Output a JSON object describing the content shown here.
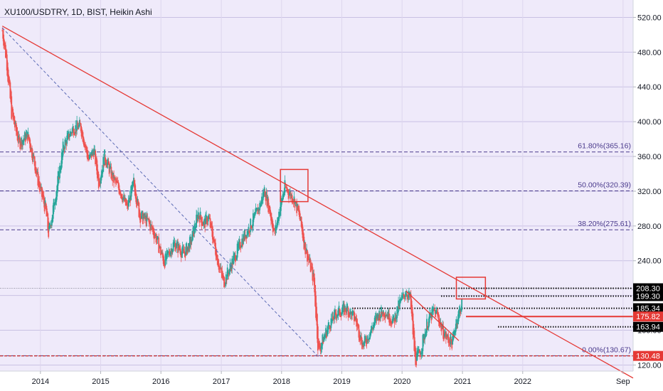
{
  "chart_data": {
    "type": "candlestick",
    "title": "XU100/USDTRY, 1D, BIST, Heikin Ashi",
    "y_axis": {
      "range": [
        113,
        540
      ],
      "position": "right",
      "ticks": [
        520,
        480,
        440,
        400,
        360,
        320,
        280,
        240,
        200,
        160,
        120
      ],
      "tick_labels": [
        "520.00",
        "480.00",
        "440.00",
        "400.00",
        "360.00",
        "320.00",
        "280.00",
        "240.00",
        "200.00",
        "160.00",
        "120.00"
      ]
    },
    "x_axis": {
      "range": [
        "2013-05-01",
        "2023-11-01"
      ],
      "ticks": [
        {
          "date": "2014-01-01",
          "label": "2014"
        },
        {
          "date": "2015-01-01",
          "label": "2015"
        },
        {
          "date": "2016-01-01",
          "label": "2016"
        },
        {
          "date": "2017-01-01",
          "label": "2017"
        },
        {
          "date": "2018-01-01",
          "label": "2018"
        },
        {
          "date": "2019-01-01",
          "label": "2019"
        },
        {
          "date": "2020-01-01",
          "label": "2020"
        },
        {
          "date": "2021-01-01",
          "label": "2021"
        },
        {
          "date": "2022-01-01",
          "label": "2022"
        },
        {
          "date": "2023-09-01",
          "label": "Sep"
        }
      ]
    },
    "series_colors": {
      "up": "#26a69a",
      "down": "#ef5350",
      "background": "#efeafa"
    },
    "price_path": [
      [
        "2013-05-15",
        505
      ],
      [
        "2013-06-10",
        470
      ],
      [
        "2013-07-10",
        410
      ],
      [
        "2013-08-25",
        375
      ],
      [
        "2013-10-15",
        385
      ],
      [
        "2013-11-20",
        358
      ],
      [
        "2013-12-25",
        325
      ],
      [
        "2014-02-01",
        300
      ],
      [
        "2014-02-20",
        270
      ],
      [
        "2014-04-15",
        330
      ],
      [
        "2014-05-20",
        372
      ],
      [
        "2014-07-15",
        392
      ],
      [
        "2014-09-01",
        395
      ],
      [
        "2014-10-20",
        355
      ],
      [
        "2014-11-20",
        368
      ],
      [
        "2014-12-20",
        330
      ],
      [
        "2015-01-25",
        360
      ],
      [
        "2015-03-15",
        335
      ],
      [
        "2015-05-01",
        320
      ],
      [
        "2015-06-10",
        300
      ],
      [
        "2015-07-20",
        330
      ],
      [
        "2015-08-25",
        292
      ],
      [
        "2015-10-15",
        285
      ],
      [
        "2015-11-30",
        268
      ],
      [
        "2016-01-20",
        238
      ],
      [
        "2016-03-20",
        260
      ],
      [
        "2016-05-20",
        248
      ],
      [
        "2016-07-01",
        262
      ],
      [
        "2016-08-15",
        295
      ],
      [
        "2016-09-15",
        282
      ],
      [
        "2016-10-15",
        290
      ],
      [
        "2016-11-20",
        258
      ],
      [
        "2016-12-20",
        232
      ],
      [
        "2017-01-15",
        215
      ],
      [
        "2017-03-01",
        235
      ],
      [
        "2017-05-01",
        262
      ],
      [
        "2017-07-01",
        282
      ],
      [
        "2017-08-20",
        302
      ],
      [
        "2017-09-20",
        322
      ],
      [
        "2017-10-20",
        298
      ],
      [
        "2017-11-20",
        270
      ],
      [
        "2017-12-20",
        300
      ],
      [
        "2018-01-20",
        325
      ],
      [
        "2018-02-15",
        318
      ],
      [
        "2018-03-20",
        310
      ],
      [
        "2018-04-20",
        290
      ],
      [
        "2018-05-20",
        258
      ],
      [
        "2018-06-15",
        240
      ],
      [
        "2018-07-15",
        218
      ],
      [
        "2018-08-12",
        135
      ],
      [
        "2018-09-10",
        150
      ],
      [
        "2018-10-20",
        168
      ],
      [
        "2018-12-01",
        180
      ],
      [
        "2019-02-01",
        185
      ],
      [
        "2019-03-25",
        172
      ],
      [
        "2019-05-10",
        142
      ],
      [
        "2019-06-20",
        158
      ],
      [
        "2019-08-10",
        178
      ],
      [
        "2019-09-20",
        182
      ],
      [
        "2019-11-10",
        170
      ],
      [
        "2019-12-20",
        192
      ],
      [
        "2020-01-25",
        205
      ],
      [
        "2020-02-20",
        196
      ],
      [
        "2020-03-20",
        125
      ],
      [
        "2020-04-20",
        135
      ],
      [
        "2020-06-01",
        168
      ],
      [
        "2020-07-10",
        182
      ],
      [
        "2020-08-01",
        178
      ],
      [
        "2020-09-01",
        160
      ],
      [
        "2020-10-01",
        150
      ],
      [
        "2020-11-02",
        146
      ],
      [
        "2020-11-20",
        168
      ],
      [
        "2020-12-10",
        180
      ],
      [
        "2020-12-31",
        193
      ]
    ],
    "fibonacci": [
      {
        "label": "61.80%(365.16)",
        "value": 365.16
      },
      {
        "label": "50.00%(320.39)",
        "value": 320.39
      },
      {
        "label": "38.20%(275.61)",
        "value": 275.61
      },
      {
        "label": "0.00%(130.67)",
        "value": 130.67
      }
    ],
    "horizontal_levels": [
      208.3,
      199.3,
      185.34,
      175.82,
      163.94
    ],
    "price_tags": [
      {
        "label": "208.30",
        "value": 208.3,
        "style": "black"
      },
      {
        "label": "199.30",
        "value": 199.3,
        "style": "black"
      },
      {
        "label": "185.34",
        "value": 185.34,
        "style": "black"
      },
      {
        "label": "175.82",
        "value": 175.82,
        "style": "red"
      },
      {
        "label": "163.94",
        "value": 163.94,
        "style": "black"
      },
      {
        "label": "130.48",
        "value": 130.48,
        "style": "red"
      }
    ],
    "trendlines": [
      {
        "from": [
          "2013-05-15",
          510
        ],
        "to": [
          "2023-11-01",
          105
        ],
        "style": "solid-red"
      },
      {
        "from": [
          "2013-05-15",
          508
        ],
        "to": [
          "2018-08-10",
          130
        ],
        "style": "dashed-blue"
      },
      {
        "from": [
          "2020-01-25",
          205
        ],
        "to": [
          "2020-12-10",
          148
        ],
        "style": "solid-red"
      }
    ],
    "boxes": [
      {
        "from": [
          "2017-12-25",
          345
        ],
        "to": [
          "2018-06-10",
          308
        ]
      },
      {
        "from": [
          "2020-11-25",
          221
        ],
        "to": [
          "2021-05-20",
          196
        ]
      }
    ]
  }
}
